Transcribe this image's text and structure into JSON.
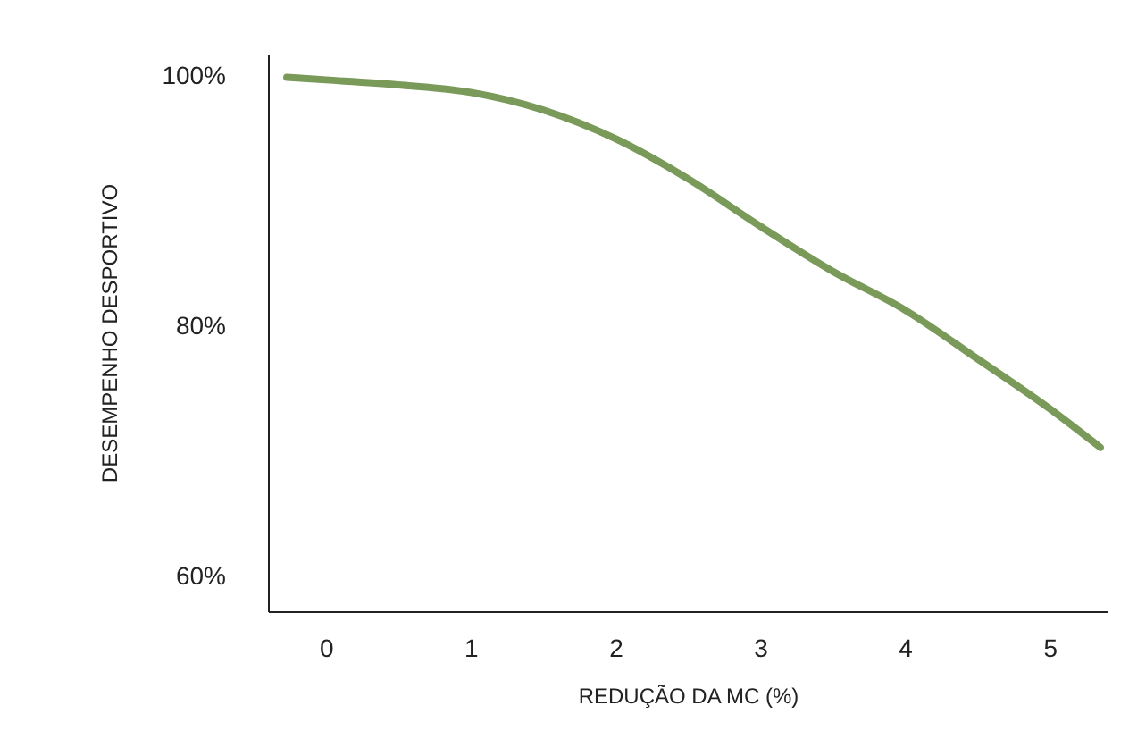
{
  "chart_data": {
    "type": "line",
    "xlabel": "REDUÇÃO DA MC (%)",
    "ylabel": "DESEMPENHO DESPORTIVO",
    "x": [
      -0.27,
      0,
      0.5,
      1,
      1.5,
      2,
      2.5,
      3,
      3.5,
      4,
      4.5,
      5,
      5.35
    ],
    "series": [
      {
        "color": "#7a9a5a",
        "values": [
          99.9,
          99.7,
          99.3,
          98.7,
          97.3,
          95,
          91.8,
          88,
          84.4,
          81.3,
          77.4,
          73.4,
          70.3
        ]
      }
    ],
    "xlim": [
      -0.4,
      5.4
    ],
    "xticks": [
      0,
      1,
      2,
      3,
      4,
      5
    ],
    "ylim": [
      57.2,
      101.8
    ],
    "yticks": [
      {
        "value": 60,
        "label": "60%"
      },
      {
        "value": 80,
        "label": "80%"
      },
      {
        "value": 100,
        "label": "100%"
      }
    ],
    "grid": false,
    "legend": false,
    "marker": "none",
    "line_style": "solid"
  }
}
